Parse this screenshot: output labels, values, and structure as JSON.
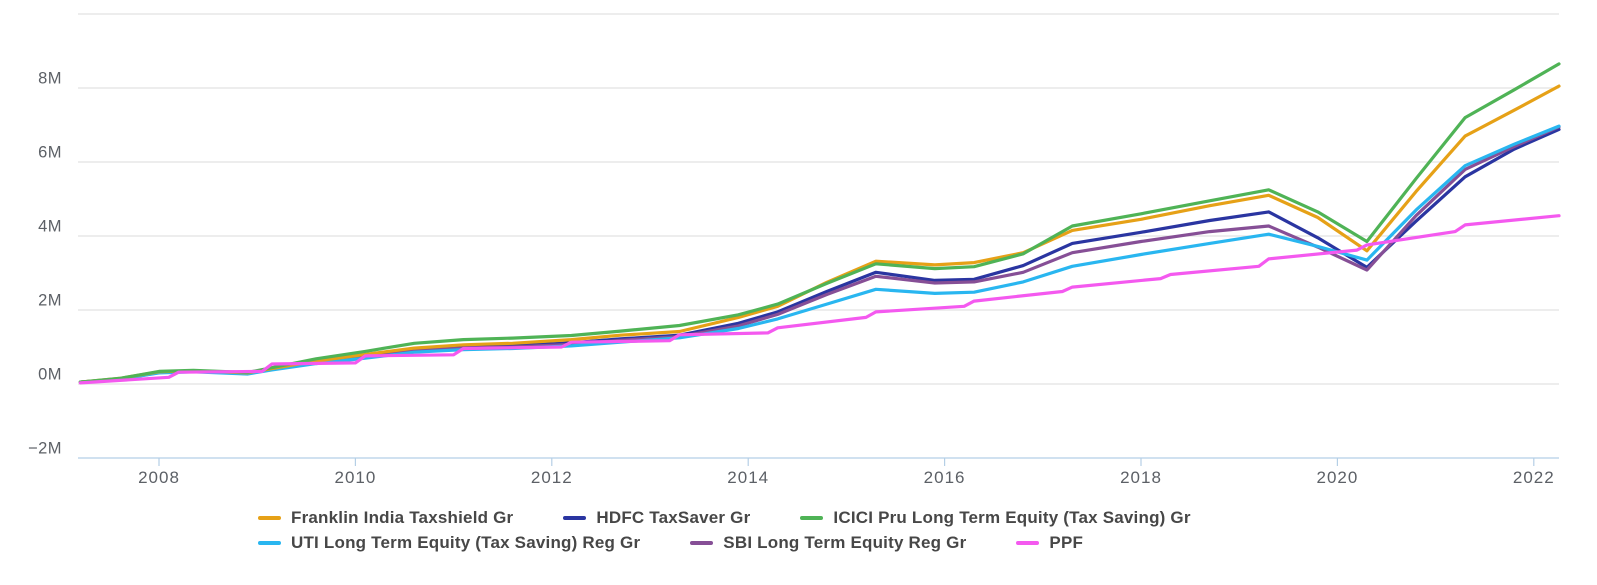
{
  "chart_data": {
    "type": "line",
    "title": "",
    "xlabel": "",
    "ylabel": "",
    "y_unit": "M (millions)",
    "ylim_millions": [
      -2,
      10
    ],
    "x_range_years": [
      2007.2,
      2022.27
    ],
    "grid": "horizontal-only",
    "legend_position": "bottom",
    "x_ticks": [
      {
        "year": 2008,
        "label": "2008"
      },
      {
        "year": 2010,
        "label": "2010"
      },
      {
        "year": 2012,
        "label": "2012"
      },
      {
        "year": 2014,
        "label": "2014"
      },
      {
        "year": 2016,
        "label": "2016"
      },
      {
        "year": 2018,
        "label": "2018"
      },
      {
        "year": 2020,
        "label": "2020"
      },
      {
        "year": 2022,
        "label": "2022"
      }
    ],
    "y_ticks": [
      {
        "value": 8,
        "label": "8M"
      },
      {
        "value": 6,
        "label": "6M"
      },
      {
        "value": 4,
        "label": "4M"
      },
      {
        "value": 2,
        "label": "2M"
      },
      {
        "value": 0,
        "label": "0M"
      },
      {
        "value": -2,
        "label": "−2M"
      }
    ],
    "gridline_values": [
      10,
      8,
      6,
      4,
      2,
      0
    ],
    "series": [
      {
        "name": "Franklin India Taxshield Gr",
        "color": "#E6A117",
        "points_year_millions": [
          [
            2007.2,
            0.05
          ],
          [
            2007.6,
            0.15
          ],
          [
            2008.0,
            0.33
          ],
          [
            2008.35,
            0.36
          ],
          [
            2008.9,
            0.3
          ],
          [
            2009.15,
            0.42
          ],
          [
            2009.6,
            0.62
          ],
          [
            2010.1,
            0.8
          ],
          [
            2010.6,
            0.97
          ],
          [
            2011.1,
            1.06
          ],
          [
            2011.6,
            1.1
          ],
          [
            2012.2,
            1.2
          ],
          [
            2012.7,
            1.32
          ],
          [
            2013.3,
            1.42
          ],
          [
            2013.9,
            1.8
          ],
          [
            2014.3,
            2.1
          ],
          [
            2014.8,
            2.75
          ],
          [
            2015.3,
            3.32
          ],
          [
            2015.9,
            3.22
          ],
          [
            2016.3,
            3.28
          ],
          [
            2016.8,
            3.55
          ],
          [
            2017.3,
            4.15
          ],
          [
            2018.0,
            4.45
          ],
          [
            2018.7,
            4.82
          ],
          [
            2019.3,
            5.1
          ],
          [
            2019.8,
            4.5
          ],
          [
            2020.3,
            3.6
          ],
          [
            2020.8,
            5.2
          ],
          [
            2021.3,
            6.7
          ],
          [
            2021.8,
            7.4
          ],
          [
            2022.27,
            8.05
          ]
        ]
      },
      {
        "name": "HDFC TaxSaver Gr",
        "color": "#2A35A1",
        "points_year_millions": [
          [
            2007.2,
            0.05
          ],
          [
            2007.6,
            0.14
          ],
          [
            2008.0,
            0.32
          ],
          [
            2008.35,
            0.35
          ],
          [
            2008.9,
            0.28
          ],
          [
            2009.15,
            0.4
          ],
          [
            2009.6,
            0.6
          ],
          [
            2010.1,
            0.76
          ],
          [
            2010.6,
            0.92
          ],
          [
            2011.1,
            1.0
          ],
          [
            2011.6,
            1.03
          ],
          [
            2012.2,
            1.11
          ],
          [
            2012.7,
            1.22
          ],
          [
            2013.3,
            1.32
          ],
          [
            2013.9,
            1.64
          ],
          [
            2014.3,
            1.95
          ],
          [
            2014.8,
            2.5
          ],
          [
            2015.3,
            3.02
          ],
          [
            2015.9,
            2.8
          ],
          [
            2016.3,
            2.83
          ],
          [
            2016.8,
            3.2
          ],
          [
            2017.3,
            3.8
          ],
          [
            2018.0,
            4.1
          ],
          [
            2018.7,
            4.42
          ],
          [
            2019.3,
            4.65
          ],
          [
            2019.8,
            3.95
          ],
          [
            2020.3,
            3.15
          ],
          [
            2020.8,
            4.4
          ],
          [
            2021.3,
            5.6
          ],
          [
            2021.8,
            6.35
          ],
          [
            2022.27,
            6.88
          ]
        ]
      },
      {
        "name": "ICICI Pru Long Term Equity (Tax Saving) Gr",
        "color": "#4FB356",
        "points_year_millions": [
          [
            2007.2,
            0.05
          ],
          [
            2007.6,
            0.15
          ],
          [
            2008.0,
            0.34
          ],
          [
            2008.35,
            0.37
          ],
          [
            2008.9,
            0.31
          ],
          [
            2009.15,
            0.44
          ],
          [
            2009.6,
            0.68
          ],
          [
            2010.1,
            0.88
          ],
          [
            2010.6,
            1.1
          ],
          [
            2011.1,
            1.2
          ],
          [
            2011.6,
            1.24
          ],
          [
            2012.2,
            1.31
          ],
          [
            2012.7,
            1.43
          ],
          [
            2013.3,
            1.58
          ],
          [
            2013.9,
            1.87
          ],
          [
            2014.3,
            2.16
          ],
          [
            2014.8,
            2.72
          ],
          [
            2015.3,
            3.25
          ],
          [
            2015.9,
            3.12
          ],
          [
            2016.3,
            3.17
          ],
          [
            2016.8,
            3.52
          ],
          [
            2017.3,
            4.27
          ],
          [
            2018.0,
            4.6
          ],
          [
            2018.7,
            4.95
          ],
          [
            2019.3,
            5.25
          ],
          [
            2019.8,
            4.65
          ],
          [
            2020.3,
            3.85
          ],
          [
            2020.8,
            5.55
          ],
          [
            2021.3,
            7.2
          ],
          [
            2021.8,
            7.95
          ],
          [
            2022.27,
            8.65
          ]
        ]
      },
      {
        "name": "UTI Long Term Equity (Tax Saving) Reg Gr",
        "color": "#29B6F0",
        "points_year_millions": [
          [
            2007.2,
            0.05
          ],
          [
            2007.6,
            0.13
          ],
          [
            2008.0,
            0.3
          ],
          [
            2008.35,
            0.33
          ],
          [
            2008.9,
            0.27
          ],
          [
            2009.15,
            0.38
          ],
          [
            2009.6,
            0.55
          ],
          [
            2010.1,
            0.7
          ],
          [
            2010.6,
            0.86
          ],
          [
            2011.1,
            0.93
          ],
          [
            2011.6,
            0.96
          ],
          [
            2012.2,
            1.03
          ],
          [
            2012.7,
            1.13
          ],
          [
            2013.3,
            1.25
          ],
          [
            2013.9,
            1.5
          ],
          [
            2014.3,
            1.76
          ],
          [
            2014.8,
            2.16
          ],
          [
            2015.3,
            2.56
          ],
          [
            2015.9,
            2.45
          ],
          [
            2016.3,
            2.48
          ],
          [
            2016.8,
            2.76
          ],
          [
            2017.3,
            3.18
          ],
          [
            2018.0,
            3.5
          ],
          [
            2018.7,
            3.8
          ],
          [
            2019.3,
            4.05
          ],
          [
            2019.8,
            3.72
          ],
          [
            2020.3,
            3.35
          ],
          [
            2020.8,
            4.7
          ],
          [
            2021.3,
            5.9
          ],
          [
            2021.8,
            6.48
          ],
          [
            2022.27,
            6.97
          ]
        ]
      },
      {
        "name": "SBI Long Term Equity Reg Gr",
        "color": "#864F96",
        "points_year_millions": [
          [
            2007.2,
            0.05
          ],
          [
            2007.6,
            0.13
          ],
          [
            2008.0,
            0.31
          ],
          [
            2008.35,
            0.34
          ],
          [
            2008.9,
            0.28
          ],
          [
            2009.15,
            0.39
          ],
          [
            2009.6,
            0.57
          ],
          [
            2010.1,
            0.73
          ],
          [
            2010.6,
            0.9
          ],
          [
            2011.1,
            0.97
          ],
          [
            2011.6,
            1.0
          ],
          [
            2012.2,
            1.07
          ],
          [
            2012.7,
            1.18
          ],
          [
            2013.3,
            1.28
          ],
          [
            2013.9,
            1.57
          ],
          [
            2014.3,
            1.88
          ],
          [
            2014.8,
            2.42
          ],
          [
            2015.3,
            2.91
          ],
          [
            2015.9,
            2.73
          ],
          [
            2016.3,
            2.76
          ],
          [
            2016.8,
            3.02
          ],
          [
            2017.3,
            3.55
          ],
          [
            2018.0,
            3.85
          ],
          [
            2018.7,
            4.12
          ],
          [
            2019.3,
            4.27
          ],
          [
            2019.8,
            3.7
          ],
          [
            2020.3,
            3.08
          ],
          [
            2020.8,
            4.55
          ],
          [
            2021.3,
            5.8
          ],
          [
            2021.8,
            6.42
          ],
          [
            2022.27,
            6.95
          ]
        ]
      },
      {
        "name": "PPF",
        "color": "#F459EF",
        "points_year_millions": [
          [
            2007.2,
            0.03
          ],
          [
            2008.1,
            0.18
          ],
          [
            2008.2,
            0.32
          ],
          [
            2009.05,
            0.34
          ],
          [
            2009.15,
            0.54
          ],
          [
            2010.0,
            0.57
          ],
          [
            2010.1,
            0.76
          ],
          [
            2011.0,
            0.79
          ],
          [
            2011.1,
            0.96
          ],
          [
            2012.1,
            1.0
          ],
          [
            2012.2,
            1.13
          ],
          [
            2013.2,
            1.17
          ],
          [
            2013.3,
            1.33
          ],
          [
            2014.2,
            1.38
          ],
          [
            2014.3,
            1.52
          ],
          [
            2015.2,
            1.8
          ],
          [
            2015.3,
            1.95
          ],
          [
            2016.2,
            2.1
          ],
          [
            2016.3,
            2.24
          ],
          [
            2017.2,
            2.5
          ],
          [
            2017.3,
            2.62
          ],
          [
            2018.2,
            2.85
          ],
          [
            2018.3,
            2.96
          ],
          [
            2019.2,
            3.18
          ],
          [
            2019.3,
            3.38
          ],
          [
            2020.2,
            3.62
          ],
          [
            2020.3,
            3.76
          ],
          [
            2021.2,
            4.12
          ],
          [
            2021.3,
            4.3
          ],
          [
            2022.27,
            4.55
          ]
        ]
      }
    ],
    "draw_order": [
      1,
      4,
      3,
      0,
      2,
      5
    ],
    "legend_rows": [
      [
        0,
        1,
        2
      ],
      [
        3,
        4,
        5
      ]
    ]
  },
  "style_colors": {
    "gridline": "#E2E2E2",
    "axis_line": "#B5CFE6",
    "axis_tick": "#B5CFE6",
    "axis_label_text": "#5C6066",
    "legend_text": "#474747",
    "background": "#FFFFFF"
  }
}
